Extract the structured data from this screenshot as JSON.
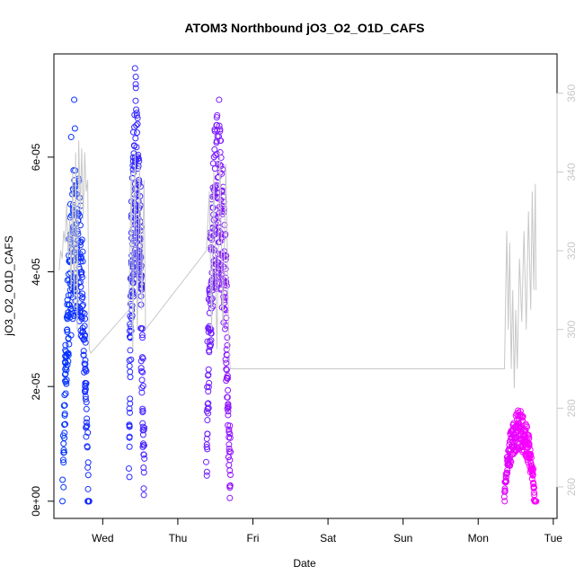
{
  "chart_data": {
    "type": "scatter",
    "title": "ATOM3 Northbound jO3_O2_O1D_CAFS",
    "xlabel": "Date",
    "ylabel": "jO3_O2_O1D_CAFS",
    "x_ticks": [
      "Wed",
      "Thu",
      "Fri",
      "Sat",
      "Sun",
      "Mon",
      "Tue"
    ],
    "x_tick_days": [
      1,
      2,
      3,
      4,
      5,
      6,
      7
    ],
    "xlim_days": [
      0.35,
      7.05
    ],
    "y_ticks": [
      "0e+00",
      "2e-05",
      "4e-05",
      "6e-05"
    ],
    "y_tick_values": [
      0,
      2e-05,
      4e-05,
      6e-05
    ],
    "ylim": [
      -3e-06,
      7.8e-05
    ],
    "y2_ticks": [
      "260",
      "280",
      "300",
      "320",
      "340",
      "360"
    ],
    "y2_tick_values": [
      260,
      280,
      300,
      320,
      340,
      360
    ],
    "y2lim": [
      252,
      370
    ],
    "marker": "open-circle",
    "color_scale": [
      "#0033ff",
      "#ff00ff"
    ],
    "line_color": "#c8c8c8",
    "grid": false,
    "segments": [
      {
        "day_start": 0.47,
        "day_end": 0.82,
        "n": 260,
        "jmax": 5.9e-05,
        "cStart": 0.0,
        "cEnd": 0.1,
        "spikes": [
          [
            0.58,
            6.35e-05
          ],
          [
            0.62,
            7e-05
          ],
          [
            0.63,
            6.5e-05
          ]
        ]
      },
      {
        "day_start": 1.35,
        "day_end": 1.55,
        "n": 220,
        "jmax": 7.3e-05,
        "cStart": 0.15,
        "cEnd": 0.28,
        "spikes": [
          [
            1.43,
            7.55e-05
          ],
          [
            1.44,
            7.4e-05
          ]
        ]
      },
      {
        "day_start": 2.38,
        "day_end": 2.7,
        "n": 260,
        "jmax": 6.8e-05,
        "cStart": 0.42,
        "cEnd": 0.58,
        "spikes": [
          [
            2.55,
            7e-05
          ]
        ]
      },
      {
        "day_start": 6.35,
        "day_end": 6.77,
        "n": 230,
        "jmax": 1.6e-05,
        "cStart": 0.88,
        "cEnd": 1.0,
        "spikes": []
      }
    ],
    "line_series": [
      [
        0.42,
        315
      ],
      [
        0.44,
        320
      ],
      [
        0.46,
        318
      ],
      [
        0.48,
        325
      ],
      [
        0.5,
        322
      ],
      [
        0.52,
        332
      ],
      [
        0.54,
        318
      ],
      [
        0.56,
        328
      ],
      [
        0.58,
        310
      ],
      [
        0.6,
        340
      ],
      [
        0.62,
        305
      ],
      [
        0.64,
        345
      ],
      [
        0.66,
        300
      ],
      [
        0.68,
        348
      ],
      [
        0.7,
        330
      ],
      [
        0.72,
        346
      ],
      [
        0.74,
        328
      ],
      [
        0.76,
        345
      ],
      [
        0.78,
        335
      ],
      [
        0.8,
        338
      ],
      [
        0.82,
        295
      ],
      [
        0.84,
        294
      ],
      [
        1.35,
        305
      ],
      [
        1.38,
        340
      ],
      [
        1.4,
        295
      ],
      [
        1.43,
        345
      ],
      [
        1.46,
        300
      ],
      [
        1.49,
        342
      ],
      [
        1.52,
        305
      ],
      [
        1.55,
        338
      ],
      [
        1.57,
        300
      ],
      [
        2.38,
        320
      ],
      [
        2.42,
        335
      ],
      [
        2.45,
        300
      ],
      [
        2.48,
        340
      ],
      [
        2.52,
        295
      ],
      [
        2.56,
        345
      ],
      [
        2.6,
        300
      ],
      [
        2.64,
        342
      ],
      [
        2.68,
        295
      ],
      [
        2.7,
        290
      ],
      [
        6.35,
        290
      ],
      [
        6.38,
        325
      ],
      [
        6.4,
        300
      ],
      [
        6.42,
        322
      ],
      [
        6.44,
        290
      ],
      [
        6.46,
        310
      ],
      [
        6.48,
        285
      ],
      [
        6.5,
        305
      ],
      [
        6.52,
        290
      ],
      [
        6.55,
        318
      ],
      [
        6.58,
        302
      ],
      [
        6.61,
        325
      ],
      [
        6.64,
        300
      ],
      [
        6.67,
        330
      ],
      [
        6.7,
        305
      ],
      [
        6.72,
        335
      ],
      [
        6.74,
        310
      ],
      [
        6.76,
        337
      ],
      [
        6.77,
        310
      ]
    ]
  }
}
